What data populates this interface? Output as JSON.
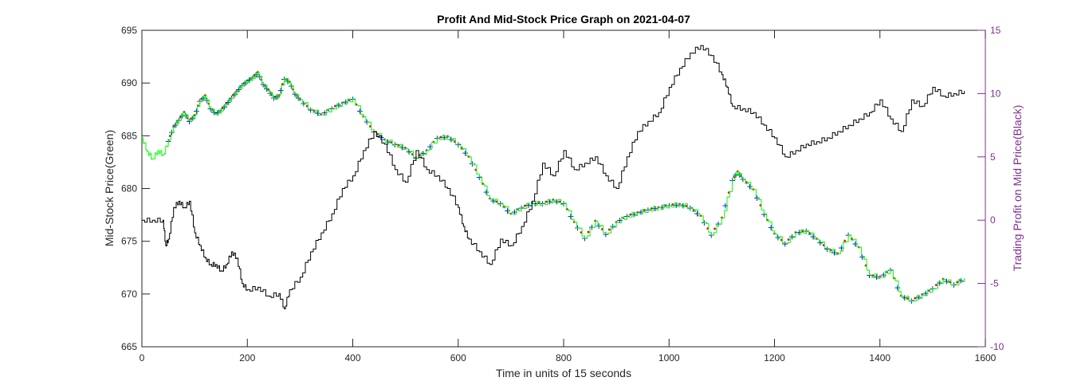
{
  "chart_data": {
    "type": "line",
    "title": "Profit And Mid-Stock Price Graph on 2021-04-07",
    "xlabel": "Time in units of 15 seconds",
    "ylabel_left": "Mid-Stock Price(Green)",
    "ylabel_right": "Trading Profit on Mid Price(Black)",
    "xlim": [
      0,
      1600
    ],
    "ylim_left": [
      665,
      695
    ],
    "ylim_right": [
      -10,
      15
    ],
    "x_ticks": [
      "0",
      "200",
      "400",
      "600",
      "800",
      "1000",
      "1200",
      "1400",
      "1600"
    ],
    "y_left_ticks": [
      "665",
      "670",
      "675",
      "680",
      "685",
      "690",
      "695"
    ],
    "y_right_ticks": [
      "-10",
      "-5",
      "0",
      "5",
      "10",
      "15"
    ],
    "colors": {
      "price": "#00ff00",
      "profit": "#000000",
      "buy_marker": "#ff0000",
      "sell_marker": "#0000ff",
      "right_axis": "#7e2f8e",
      "axes": "#262626"
    },
    "series": [
      {
        "name": "Mid-Stock Price",
        "axis": "left",
        "color": "#00ff00",
        "x": [
          0,
          10,
          20,
          30,
          40,
          50,
          60,
          70,
          80,
          90,
          100,
          110,
          120,
          130,
          140,
          150,
          160,
          170,
          180,
          190,
          200,
          210,
          220,
          230,
          240,
          250,
          260,
          270,
          280,
          290,
          300,
          320,
          340,
          360,
          380,
          400,
          420,
          440,
          460,
          480,
          500,
          520,
          540,
          560,
          580,
          600,
          620,
          640,
          660,
          680,
          700,
          720,
          740,
          760,
          780,
          800,
          820,
          840,
          860,
          880,
          900,
          920,
          940,
          960,
          980,
          1000,
          1020,
          1040,
          1060,
          1080,
          1100,
          1120,
          1130,
          1140,
          1160,
          1180,
          1200,
          1220,
          1240,
          1260,
          1280,
          1300,
          1320,
          1340,
          1360,
          1380,
          1400,
          1420,
          1440,
          1460,
          1480,
          1500,
          1520,
          1540,
          1560
        ],
        "values": [
          684.8,
          683.5,
          682.8,
          683.6,
          683.2,
          684.5,
          685.8,
          686.5,
          687.2,
          686.4,
          686.9,
          688.3,
          688.8,
          687.6,
          687.1,
          687.4,
          688.0,
          688.6,
          689.2,
          689.8,
          690.2,
          690.5,
          691.0,
          689.9,
          689.3,
          688.6,
          688.8,
          690.4,
          690.1,
          689.0,
          688.4,
          687.5,
          687.0,
          687.6,
          688.1,
          688.5,
          686.8,
          685.4,
          684.6,
          684.2,
          683.8,
          682.9,
          683.6,
          684.8,
          684.9,
          684.2,
          683.0,
          681.1,
          679.0,
          678.6,
          677.6,
          678.2,
          678.6,
          678.6,
          678.9,
          678.6,
          676.8,
          675.3,
          676.9,
          675.7,
          676.8,
          677.4,
          677.7,
          678.0,
          678.2,
          678.4,
          678.5,
          678.2,
          677.4,
          675.6,
          677.2,
          680.8,
          681.6,
          680.9,
          679.9,
          677.6,
          675.7,
          674.8,
          675.8,
          676.0,
          675.2,
          674.3,
          673.8,
          675.6,
          674.4,
          671.8,
          671.6,
          672.3,
          669.8,
          669.4,
          669.9,
          670.5,
          671.4,
          670.9,
          671.5
        ]
      },
      {
        "name": "Trading Profit",
        "axis": "right",
        "color": "#000000",
        "x": [
          0,
          20,
          40,
          45,
          50,
          60,
          70,
          80,
          90,
          100,
          110,
          120,
          130,
          140,
          150,
          160,
          170,
          180,
          190,
          200,
          220,
          240,
          260,
          270,
          280,
          300,
          320,
          340,
          360,
          380,
          400,
          420,
          440,
          460,
          480,
          500,
          520,
          540,
          560,
          580,
          600,
          610,
          620,
          640,
          660,
          680,
          700,
          720,
          740,
          760,
          780,
          800,
          820,
          840,
          860,
          880,
          900,
          920,
          940,
          960,
          980,
          1000,
          1020,
          1040,
          1060,
          1080,
          1100,
          1110,
          1120,
          1140,
          1160,
          1180,
          1200,
          1220,
          1240,
          1260,
          1280,
          1300,
          1320,
          1340,
          1360,
          1380,
          1400,
          1420,
          1440,
          1460,
          1480,
          1500,
          1520,
          1540,
          1560
        ],
        "values": [
          0.0,
          0.0,
          0.0,
          -2.0,
          -1.5,
          1.0,
          1.5,
          1.0,
          1.5,
          -1.0,
          -2.0,
          -3.0,
          -3.5,
          -3.5,
          -4.0,
          -3.5,
          -2.5,
          -3.0,
          -5.0,
          -5.5,
          -5.3,
          -6.0,
          -5.8,
          -7.0,
          -5.5,
          -4.5,
          -2.5,
          -1.0,
          0.5,
          2.5,
          3.5,
          5.5,
          7.0,
          6.0,
          4.0,
          3.0,
          5.5,
          4.0,
          3.5,
          2.5,
          1.0,
          -0.5,
          -1.5,
          -2.5,
          -3.5,
          -1.5,
          -2.0,
          -0.5,
          1.5,
          4.5,
          3.5,
          5.5,
          4.0,
          4.5,
          5.0,
          3.5,
          2.5,
          5.0,
          7.0,
          7.8,
          8.5,
          10.5,
          12.0,
          13.2,
          13.8,
          13.0,
          11.5,
          10.5,
          9.0,
          8.8,
          8.5,
          7.5,
          6.5,
          5.0,
          5.5,
          6.0,
          6.2,
          6.5,
          7.0,
          7.5,
          8.0,
          8.5,
          9.5,
          8.0,
          7.0,
          9.5,
          9.0,
          10.5,
          9.8,
          10.0,
          10.2
        ]
      }
    ],
    "trade_markers": {
      "buy_color": "#ff0000",
      "sell_color": "#0000ff",
      "buy_symbol": "•",
      "sell_symbol": "+"
    }
  }
}
